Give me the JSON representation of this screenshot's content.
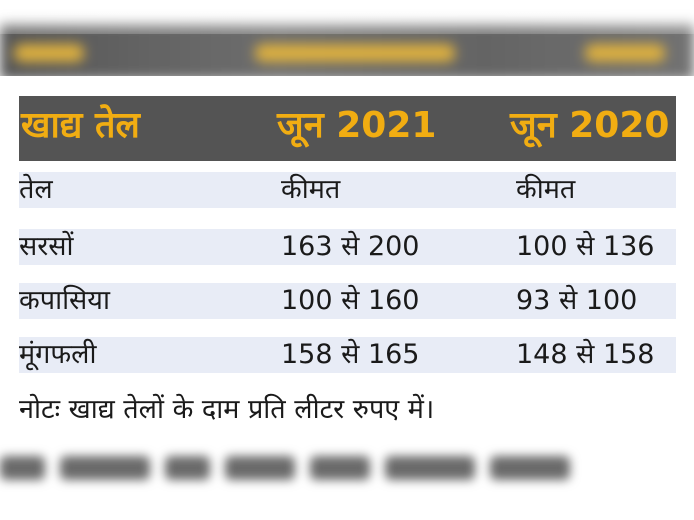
{
  "table": {
    "header": {
      "col1": "खाद्य तेल",
      "col2": "जून 2021",
      "col3": "जून 2020"
    },
    "rows": [
      {
        "oil": "तेल",
        "jun2021": "कीमत",
        "jun2020": "कीमत"
      },
      {
        "oil": "सरसों",
        "jun2021": "163 से 200",
        "jun2020": "100 से 136"
      },
      {
        "oil": "कपासिया",
        "jun2021": "100 से 160",
        "jun2020": "93 से 100"
      },
      {
        "oil": "मूंगफली",
        "jun2021": "158 से 165",
        "jun2020": "148 से 158"
      }
    ],
    "note": "नोटः खाद्य तेलों के दाम प्रति लीटर रुपए में।"
  },
  "colors": {
    "header_bg": "#545454",
    "header_text": "#f1ad12",
    "row_shade": "#e8ecf6",
    "text": "#1a1a1a"
  }
}
